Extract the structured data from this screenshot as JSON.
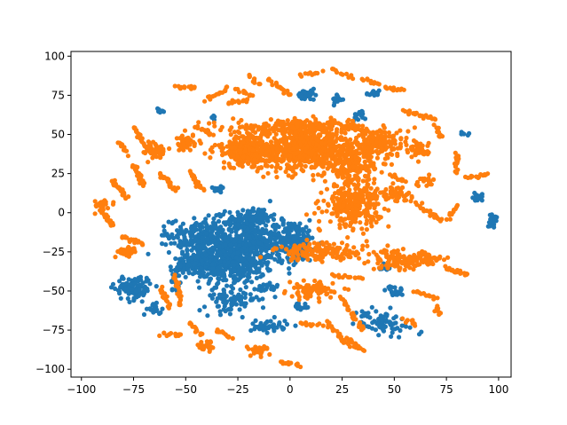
{
  "chart_data": {
    "type": "scatter",
    "title": "",
    "xlabel": "",
    "ylabel": "",
    "xlim": [
      -105,
      106
    ],
    "ylim": [
      -105,
      103
    ],
    "xticks": [
      -100,
      -75,
      -50,
      -25,
      0,
      25,
      50,
      75,
      100
    ],
    "yticks": [
      -100,
      -75,
      -50,
      -25,
      0,
      25,
      50,
      75,
      100
    ],
    "grid": false,
    "legend": "none",
    "series": [
      {
        "color": "#1f77b4",
        "clusters": [
          {
            "cx": -28,
            "cy": -30,
            "rx": 18,
            "ry": 14,
            "n": 520
          },
          {
            "cx": -42,
            "cy": -15,
            "rx": 14,
            "ry": 10,
            "n": 200
          },
          {
            "cx": -47,
            "cy": -33,
            "rx": 8,
            "ry": 6,
            "n": 90
          },
          {
            "cx": -25,
            "cy": -5,
            "rx": 10,
            "ry": 6,
            "n": 70
          },
          {
            "cx": -15,
            "cy": -2,
            "rx": 6,
            "ry": 5,
            "n": 70
          },
          {
            "cx": 0,
            "cy": -18,
            "rx": 12,
            "ry": 12,
            "n": 260
          },
          {
            "cx": -18,
            "cy": -15,
            "rx": 6,
            "ry": 8,
            "n": 80
          },
          {
            "cx": -28,
            "cy": -55,
            "rx": 12,
            "ry": 8,
            "n": 90
          },
          {
            "cx": -75,
            "cy": -48,
            "rx": 8,
            "ry": 7,
            "n": 110
          },
          {
            "cx": -65,
            "cy": -62,
            "rx": 3,
            "ry": 3,
            "n": 18
          },
          {
            "cx": -10,
            "cy": -72,
            "rx": 8,
            "ry": 4,
            "n": 40
          },
          {
            "cx": 8,
            "cy": 75,
            "rx": 4,
            "ry": 3,
            "n": 40
          },
          {
            "cx": 23,
            "cy": 73,
            "rx": 3,
            "ry": 3,
            "n": 15
          },
          {
            "cx": 33,
            "cy": 62,
            "rx": 3,
            "ry": 3,
            "n": 15
          },
          {
            "cx": 40,
            "cy": 76,
            "rx": 3,
            "ry": 2,
            "n": 12
          },
          {
            "cx": -62,
            "cy": 65,
            "rx": 2,
            "ry": 2,
            "n": 8
          },
          {
            "cx": -37,
            "cy": 62,
            "rx": 2,
            "ry": 2,
            "n": 6
          },
          {
            "cx": 84,
            "cy": 50,
            "rx": 2,
            "ry": 2,
            "n": 8
          },
          {
            "cx": 90,
            "cy": 10,
            "rx": 3,
            "ry": 2,
            "n": 15
          },
          {
            "cx": 97,
            "cy": -5,
            "rx": 2,
            "ry": 4,
            "n": 20
          },
          {
            "cx": 45,
            "cy": -70,
            "rx": 9,
            "ry": 7,
            "n": 70
          },
          {
            "cx": 50,
            "cy": -50,
            "rx": 4,
            "ry": 3,
            "n": 20
          },
          {
            "cx": 35,
            "cy": -65,
            "rx": 3,
            "ry": 2,
            "n": 10
          },
          {
            "cx": -55,
            "cy": -42,
            "rx": 2,
            "ry": 8,
            "n": 25
          },
          {
            "cx": 64,
            "cy": -78,
            "rx": 2,
            "ry": 2,
            "n": 6
          },
          {
            "cx": 45,
            "cy": -35,
            "rx": 3,
            "ry": 3,
            "n": 12
          },
          {
            "cx": 5,
            "cy": -60,
            "rx": 4,
            "ry": 3,
            "n": 15
          },
          {
            "cx": -34,
            "cy": 15,
            "rx": 3,
            "ry": 3,
            "n": 15
          },
          {
            "cx": -60,
            "cy": -15,
            "rx": 2,
            "ry": 2,
            "n": 6
          },
          {
            "cx": -10,
            "cy": -48,
            "rx": 4,
            "ry": 4,
            "n": 20
          }
        ]
      },
      {
        "color": "#ff7f0e",
        "clusters": [
          {
            "cx": 10,
            "cy": 40,
            "rx": 25,
            "ry": 12,
            "n": 650
          },
          {
            "cx": -20,
            "cy": 40,
            "rx": 15,
            "ry": 10,
            "n": 260
          },
          {
            "cx": 30,
            "cy": 30,
            "rx": 12,
            "ry": 10,
            "n": 180
          },
          {
            "cx": 5,
            "cy": 55,
            "rx": 30,
            "ry": 4,
            "n": 200
          },
          {
            "cx": 30,
            "cy": 5,
            "rx": 12,
            "ry": 12,
            "n": 280
          },
          {
            "cx": 45,
            "cy": 45,
            "rx": 10,
            "ry": 8,
            "n": 130
          },
          {
            "cx": -65,
            "cy": 40,
            "rx": 4,
            "ry": 5,
            "n": 60
          },
          {
            "cx": -50,
            "cy": 45,
            "rx": 4,
            "ry": 5,
            "n": 45
          },
          {
            "cx": 62,
            "cy": 40,
            "rx": 4,
            "ry": 5,
            "n": 40
          },
          {
            "cx": 15,
            "cy": -25,
            "rx": 20,
            "ry": 5,
            "n": 140
          },
          {
            "cx": 10,
            "cy": -50,
            "rx": 10,
            "ry": 5,
            "n": 80
          },
          {
            "cx": -90,
            "cy": 5,
            "rx": 5,
            "ry": 4,
            "n": 30
          },
          {
            "cx": 50,
            "cy": -30,
            "rx": 10,
            "ry": 6,
            "n": 80
          },
          {
            "cx": 65,
            "cy": -30,
            "rx": 8,
            "ry": 5,
            "n": 60
          },
          {
            "cx": -78,
            "cy": -25,
            "rx": 4,
            "ry": 3,
            "n": 40
          },
          {
            "cx": -40,
            "cy": -85,
            "rx": 5,
            "ry": 3,
            "n": 25
          },
          {
            "cx": -15,
            "cy": -88,
            "rx": 5,
            "ry": 3,
            "n": 25
          },
          {
            "cx": 50,
            "cy": 12,
            "rx": 8,
            "ry": 4,
            "n": 60
          },
          {
            "cx": 65,
            "cy": 20,
            "rx": 4,
            "ry": 3,
            "n": 20
          }
        ],
        "arcs": [
          {
            "x0": -85,
            "y0": 20,
            "x1": -78,
            "y1": 10,
            "n": 25
          },
          {
            "x0": -75,
            "y0": 30,
            "x1": -70,
            "y1": 18,
            "n": 25
          },
          {
            "x0": -90,
            "y0": 0,
            "x1": -85,
            "y1": -8,
            "n": 15
          },
          {
            "x0": -80,
            "y0": -15,
            "x1": -70,
            "y1": -20,
            "n": 20
          },
          {
            "x0": -75,
            "y0": 55,
            "x1": -70,
            "y1": 45,
            "n": 15
          },
          {
            "x0": -82,
            "y0": 45,
            "x1": -78,
            "y1": 38,
            "n": 12
          },
          {
            "x0": -62,
            "y0": 25,
            "x1": -55,
            "y1": 15,
            "n": 20
          },
          {
            "x0": -48,
            "y0": 25,
            "x1": -42,
            "y1": 15,
            "n": 20
          },
          {
            "x0": -55,
            "y0": -40,
            "x1": -52,
            "y1": -60,
            "n": 20
          },
          {
            "x0": -62,
            "y0": -48,
            "x1": -58,
            "y1": -60,
            "n": 15
          },
          {
            "x0": -62,
            "y0": -78,
            "x1": -52,
            "y1": -78,
            "n": 12
          },
          {
            "x0": -35,
            "y0": -75,
            "x1": -28,
            "y1": -80,
            "n": 12
          },
          {
            "x0": -5,
            "y0": -95,
            "x1": 5,
            "y1": -98,
            "n": 12
          },
          {
            "x0": -55,
            "y0": 80,
            "x1": -45,
            "y1": 80,
            "n": 12
          },
          {
            "x0": -40,
            "y0": 72,
            "x1": -30,
            "y1": 80,
            "n": 15
          },
          {
            "x0": -30,
            "y0": 70,
            "x1": -20,
            "y1": 72,
            "n": 12
          },
          {
            "x0": -10,
            "y0": 85,
            "x1": 0,
            "y1": 75,
            "n": 18
          },
          {
            "x0": -20,
            "y0": 88,
            "x1": -15,
            "y1": 82,
            "n": 10
          },
          {
            "x0": 5,
            "y0": 88,
            "x1": 15,
            "y1": 90,
            "n": 10
          },
          {
            "x0": 20,
            "y0": 92,
            "x1": 30,
            "y1": 85,
            "n": 10
          },
          {
            "x0": 35,
            "y0": 85,
            "x1": 42,
            "y1": 82,
            "n": 10
          },
          {
            "x0": 45,
            "y0": 80,
            "x1": 55,
            "y1": 78,
            "n": 12
          },
          {
            "x0": 55,
            "y0": 65,
            "x1": 70,
            "y1": 60,
            "n": 25
          },
          {
            "x0": 70,
            "y0": 55,
            "x1": 72,
            "y1": 48,
            "n": 10
          },
          {
            "x0": 80,
            "y0": 38,
            "x1": 80,
            "y1": 25,
            "n": 15
          },
          {
            "x0": 85,
            "y0": 22,
            "x1": 95,
            "y1": 25,
            "n": 15
          },
          {
            "x0": 62,
            "y0": 5,
            "x1": 72,
            "y1": -5,
            "n": 20
          },
          {
            "x0": 75,
            "y0": -5,
            "x1": 80,
            "y1": 5,
            "n": 10
          },
          {
            "x0": 75,
            "y0": -35,
            "x1": 85,
            "y1": -40,
            "n": 20
          },
          {
            "x0": 60,
            "y0": -50,
            "x1": 70,
            "y1": -55,
            "n": 15
          },
          {
            "x0": 55,
            "y0": -68,
            "x1": 60,
            "y1": -72,
            "n": 10
          },
          {
            "x0": 70,
            "y0": -60,
            "x1": 72,
            "y1": -65,
            "n": 10
          },
          {
            "x0": 25,
            "y0": -55,
            "x1": 35,
            "y1": -75,
            "n": 25
          },
          {
            "x0": 18,
            "y0": -70,
            "x1": 28,
            "y1": -85,
            "n": 20
          },
          {
            "x0": 28,
            "y0": -80,
            "x1": 35,
            "y1": -88,
            "n": 15
          },
          {
            "x0": 5,
            "y0": -70,
            "x1": 15,
            "y1": -72,
            "n": 10
          },
          {
            "x0": 20,
            "y0": -40,
            "x1": 35,
            "y1": -42,
            "n": 15
          },
          {
            "x0": 30,
            "y0": 55,
            "x1": 40,
            "y1": 50,
            "n": 12
          },
          {
            "x0": 48,
            "y0": 25,
            "x1": 55,
            "y1": 20,
            "n": 12
          },
          {
            "x0": -25,
            "y0": 78,
            "x1": -18,
            "y1": 75,
            "n": 10
          },
          {
            "x0": -45,
            "y0": 55,
            "x1": -38,
            "y1": 50,
            "n": 12
          },
          {
            "x0": -48,
            "y0": -70,
            "x1": -42,
            "y1": -78,
            "n": 12
          }
        ]
      }
    ]
  }
}
